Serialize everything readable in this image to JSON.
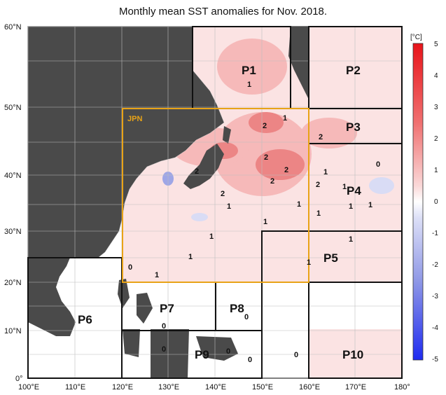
{
  "title": "Monthly mean SST anomalies for Nov. 2018.",
  "lon_ticks": [
    "100°E",
    "110°E",
    "120°E",
    "130°E",
    "140°E",
    "150°E",
    "160°E",
    "170°E",
    "180°"
  ],
  "lat_ticks": [
    "0°",
    "10°N",
    "20°N",
    "30°N",
    "40°N",
    "50°N",
    "60°N"
  ],
  "colorbar": {
    "unit": "[°C]",
    "labels": [
      "5",
      "4",
      "3",
      "2",
      "1",
      "0",
      "-1",
      "-2",
      "-3",
      "-4",
      "-5"
    ]
  },
  "jpn_label": "JPN",
  "regions": [
    {
      "id": "P1",
      "label": "P1"
    },
    {
      "id": "P2",
      "label": "P2"
    },
    {
      "id": "P3",
      "label": "P3"
    },
    {
      "id": "P4",
      "label": "P4"
    },
    {
      "id": "P5",
      "label": "P5"
    },
    {
      "id": "P6",
      "label": "P6"
    },
    {
      "id": "P7",
      "label": "P7"
    },
    {
      "id": "P8",
      "label": "P8"
    },
    {
      "id": "P9",
      "label": "P9"
    },
    {
      "id": "P10",
      "label": "P10"
    }
  ],
  "contour_labels": [
    "1",
    "2",
    "1",
    "2",
    "2",
    "2",
    "2",
    "0",
    "1",
    "2",
    "2",
    "1",
    "1",
    "2",
    "1",
    "1",
    "1",
    "1",
    "1",
    "1",
    "1",
    "1",
    "1",
    "0",
    "1",
    "0",
    "0",
    "0",
    "0",
    "0",
    "0"
  ],
  "colors": {
    "land": "#4a4a4a",
    "jpn_box": "#e8a317",
    "warm1": "#fbe3e3",
    "warm2": "#f6b9b9",
    "warm3": "#ec8585",
    "cool1": "#d9dcf5",
    "cool2": "#9ea6e6"
  }
}
